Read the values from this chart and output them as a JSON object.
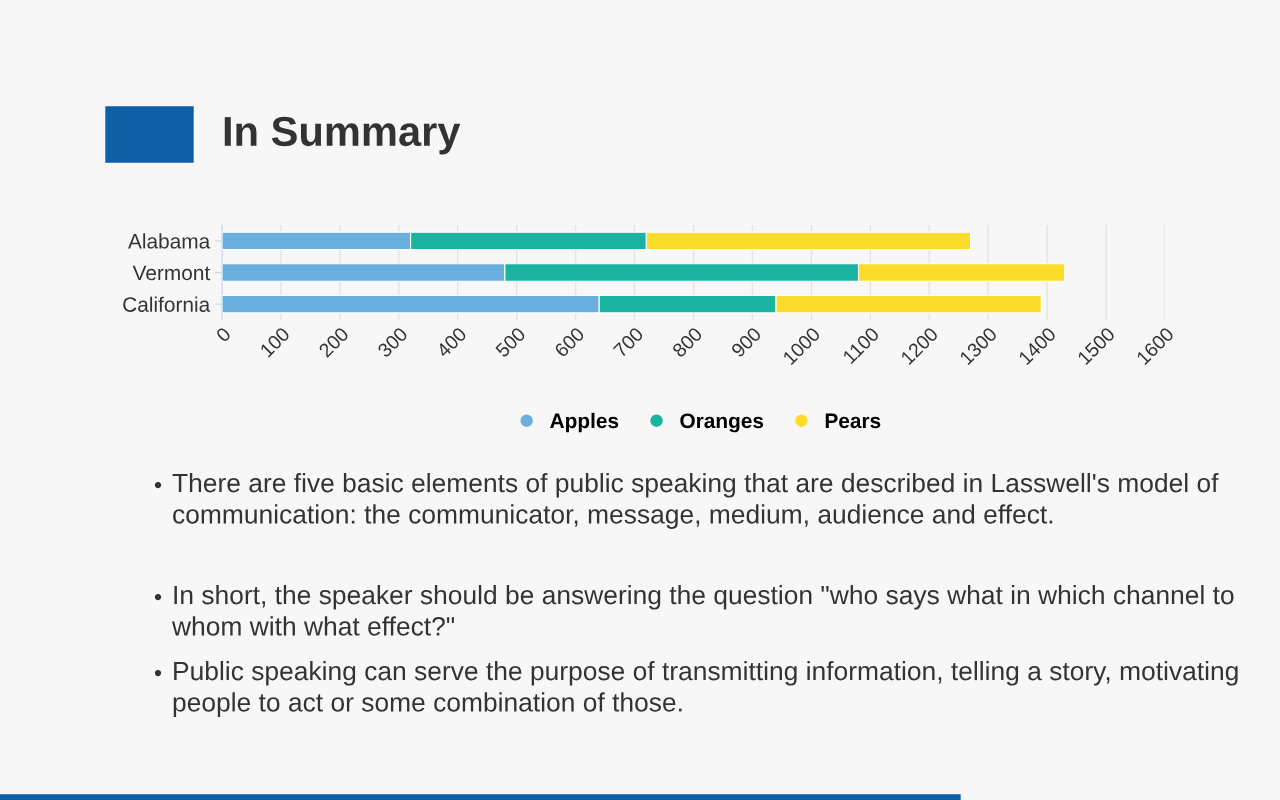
{
  "chart_data": {
    "type": "bar",
    "orientation": "horizontal",
    "stacked": true,
    "title": "In Summary",
    "categories": [
      "Alabama",
      "Vermont",
      "California"
    ],
    "series": [
      {
        "name": "Apples",
        "color": "#6ab0de",
        "values": [
          320,
          480,
          640
        ]
      },
      {
        "name": "Oranges",
        "color": "#1ab39f",
        "values": [
          400,
          600,
          300
        ]
      },
      {
        "name": "Pears",
        "color": "#fcdc2a",
        "values": [
          550,
          350,
          450
        ]
      }
    ],
    "xlim": [
      0,
      1600
    ],
    "xticks": [
      0,
      100,
      200,
      300,
      400,
      500,
      600,
      700,
      800,
      900,
      1000,
      1100,
      1200,
      1300,
      1400,
      1500,
      1600
    ],
    "grid": "x",
    "legend": "bottom",
    "annotations": [
      "There are five basic elements of public speaking that are described in Lasswell's model of communication: the communicator, message, medium, audience and effect.",
      "In short, the speaker should be answering the question \"who says what in which channel to whom with what effect?\"",
      "Public speaking can serve the purpose of transmitting information, telling a story, motivating people to act or some combination of those."
    ]
  }
}
